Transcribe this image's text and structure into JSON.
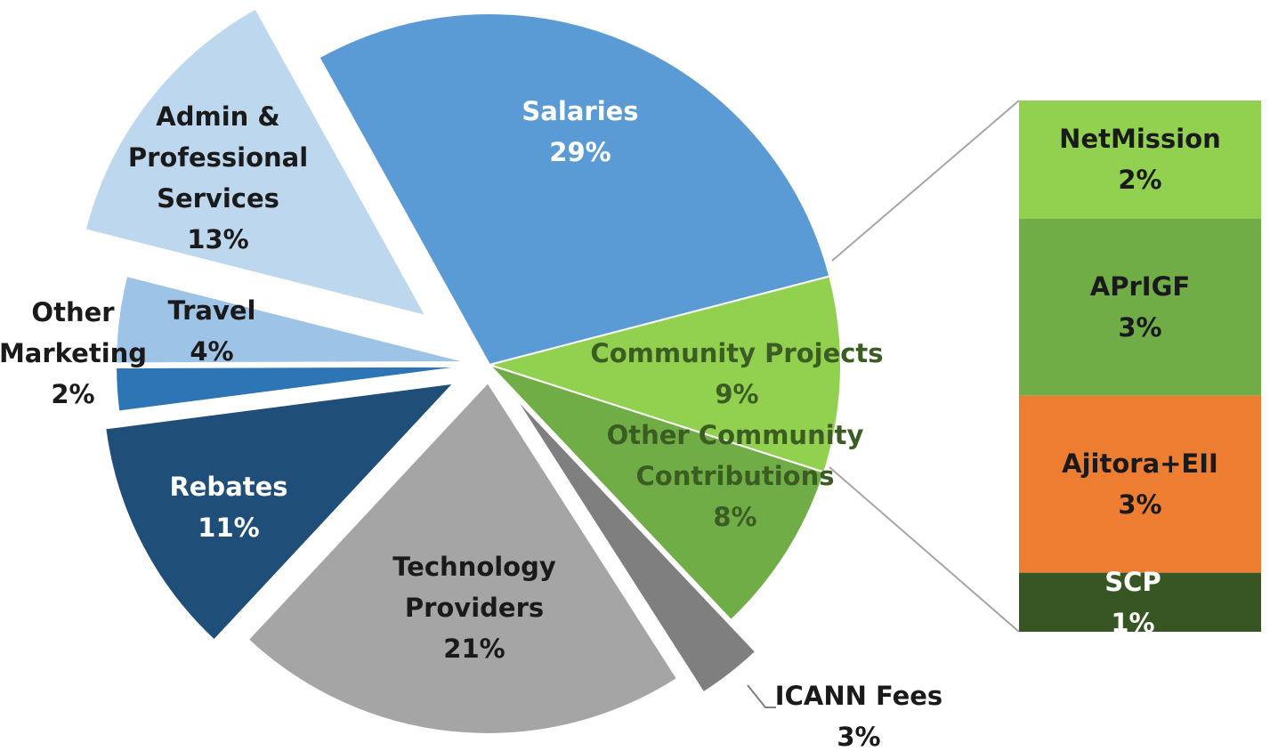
{
  "chart_data": {
    "type": "pie",
    "categories": [
      "Salaries",
      "Community Projects",
      "Other Community Contributions",
      "ICANN Fees",
      "Technology Providers",
      "Rebates",
      "Other Marketing",
      "Travel",
      "Admin & Professional Services"
    ],
    "values": [
      29,
      9,
      8,
      3,
      21,
      11,
      2,
      4,
      13
    ],
    "value_labels": [
      "29%",
      "9%",
      "8%",
      "3%",
      "21%",
      "11%",
      "2%",
      "4%",
      "13%"
    ],
    "colors": [
      "#5b9bd5",
      "#92d050",
      "#70ad47",
      "#7f7f7f",
      "#a5a5a5",
      "#1f4e79",
      "#2e75b6",
      "#9dc3e6",
      "#bdd7ee"
    ],
    "breakdown": {
      "type": "bar",
      "categories": [
        "NetMission",
        "APrIGF",
        "Ajitora+EII",
        "SCP"
      ],
      "values": [
        2,
        3,
        3,
        1
      ],
      "value_labels": [
        "2%",
        "3%",
        "3%",
        "1%"
      ],
      "colors": [
        "#92d050",
        "#70ad47",
        "#ed7d31",
        "#375623"
      ]
    }
  }
}
